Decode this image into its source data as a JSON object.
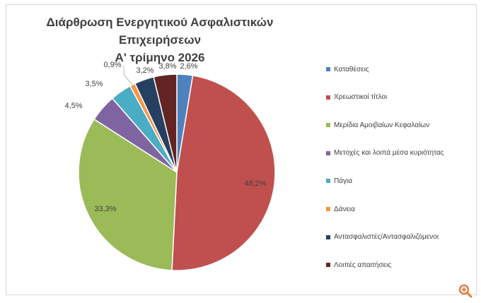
{
  "chart_data": {
    "type": "pie",
    "title_line1": "Διάρθρωση Ενεργητικού Ασφαλιστικών Επιχειρήσεων",
    "title_line2": "Α' τρίμηνο 2026",
    "legend_position": "right",
    "slices": [
      {
        "name": "Καταθέσεις",
        "value": 2.6,
        "label": "2,6%",
        "color": "#4f81bd"
      },
      {
        "name": "Χρεωστικοί τίτλοι",
        "value": 48.2,
        "label": "48,2%",
        "color": "#c0504d"
      },
      {
        "name": "Μερίδια Αμοιβαίων Κεφαλαίων",
        "value": 33.3,
        "label": "33,3%",
        "color": "#9bbb59"
      },
      {
        "name": "Μετοχές και λοιπά μέσα κυριότητας",
        "value": 4.5,
        "label": "4,5%",
        "color": "#8064a2"
      },
      {
        "name": "Πάγια",
        "value": 3.5,
        "label": "3,5%",
        "color": "#4bacc6"
      },
      {
        "name": "Δάνεια",
        "value": 0.9,
        "label": "0,9%",
        "color": "#f79646"
      },
      {
        "name": "Αντασφαλιστές/Αντασφαλιζόμενοι",
        "value": 3.2,
        "label": "3,2%",
        "color": "#254061"
      },
      {
        "name": "Λοιπές απαιτήσεις",
        "value": 3.8,
        "label": "3,8%",
        "color": "#632523"
      }
    ]
  },
  "icons": {
    "zoom": "zoom-in-icon",
    "zoom_color": "#e8742c"
  }
}
